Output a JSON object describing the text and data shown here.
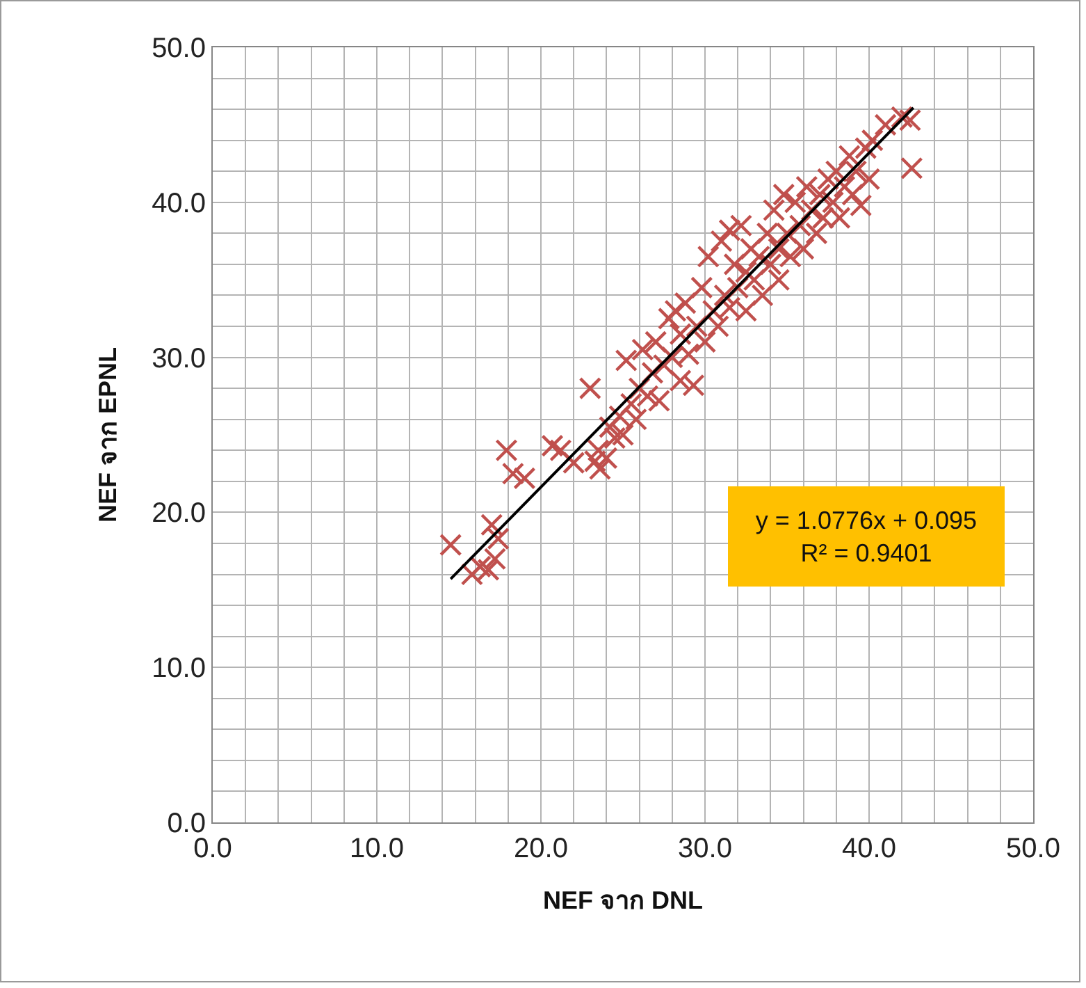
{
  "chart_data": {
    "type": "scatter",
    "xlabel": "NEF จาก DNL",
    "ylabel": "NEF จาก EPNL",
    "annotations": [
      "y = 1.0776x + 0.095",
      "R² = 0.9401"
    ],
    "xlim": [
      0,
      50
    ],
    "ylim": [
      0,
      50
    ],
    "xticks": [
      {
        "value": 0,
        "label": "0.0"
      },
      {
        "value": 2,
        "label": null
      },
      {
        "value": 4,
        "label": null
      },
      {
        "value": 6,
        "label": null
      },
      {
        "value": 8,
        "label": null
      },
      {
        "value": 10,
        "label": "10.0"
      },
      {
        "value": 12,
        "label": null
      },
      {
        "value": 14,
        "label": null
      },
      {
        "value": 16,
        "label": null
      },
      {
        "value": 18,
        "label": null
      },
      {
        "value": 20,
        "label": "20.0"
      },
      {
        "value": 22,
        "label": null
      },
      {
        "value": 24,
        "label": null
      },
      {
        "value": 26,
        "label": null
      },
      {
        "value": 28,
        "label": null
      },
      {
        "value": 30,
        "label": "30.0"
      },
      {
        "value": 32,
        "label": null
      },
      {
        "value": 34,
        "label": null
      },
      {
        "value": 36,
        "label": null
      },
      {
        "value": 38,
        "label": null
      },
      {
        "value": 40,
        "label": "40.0"
      },
      {
        "value": 42,
        "label": null
      },
      {
        "value": 44,
        "label": null
      },
      {
        "value": 46,
        "label": null
      },
      {
        "value": 48,
        "label": null
      },
      {
        "value": 50,
        "label": "50.0"
      }
    ],
    "yticks": [
      {
        "value": 0,
        "label": "0.0"
      },
      {
        "value": 2,
        "label": null
      },
      {
        "value": 4,
        "label": null
      },
      {
        "value": 6,
        "label": null
      },
      {
        "value": 8,
        "label": null
      },
      {
        "value": 10,
        "label": "10.0"
      },
      {
        "value": 12,
        "label": null
      },
      {
        "value": 14,
        "label": null
      },
      {
        "value": 16,
        "label": null
      },
      {
        "value": 18,
        "label": null
      },
      {
        "value": 20,
        "label": "20.0"
      },
      {
        "value": 22,
        "label": null
      },
      {
        "value": 24,
        "label": null
      },
      {
        "value": 26,
        "label": null
      },
      {
        "value": 28,
        "label": null
      },
      {
        "value": 30,
        "label": "30.0"
      },
      {
        "value": 32,
        "label": null
      },
      {
        "value": 34,
        "label": null
      },
      {
        "value": 36,
        "label": null
      },
      {
        "value": 38,
        "label": null
      },
      {
        "value": 40,
        "label": "40.0"
      },
      {
        "value": 42,
        "label": null
      },
      {
        "value": 44,
        "label": null
      },
      {
        "value": 46,
        "label": null
      },
      {
        "value": 48,
        "label": null
      },
      {
        "value": 50,
        "label": "50.0"
      }
    ],
    "grid": true,
    "series": [
      {
        "color": "#c0504d",
        "marker": "cross",
        "x": [
          14.5,
          15.8,
          16.3,
          16.8,
          17.2,
          17.0,
          17.4,
          17.9,
          18.3,
          19.0,
          20.7,
          21.2,
          22.0,
          23.0,
          23.3,
          23.6,
          23.5,
          24.0,
          24.2,
          24.5,
          24.8,
          25.0,
          25.2,
          25.5,
          25.8,
          26.0,
          26.2,
          26.5,
          26.8,
          27.0,
          27.2,
          27.5,
          27.8,
          28.0,
          28.2,
          28.5,
          28.5,
          28.8,
          29.0,
          29.3,
          29.5,
          29.8,
          30.0,
          30.2,
          30.5,
          30.8,
          31.0,
          31.2,
          31.5,
          31.5,
          31.8,
          32.0,
          32.2,
          32.5,
          32.5,
          32.8,
          33.0,
          33.3,
          33.5,
          33.8,
          34.0,
          34.2,
          34.5,
          34.5,
          34.8,
          35.0,
          35.2,
          35.5,
          35.8,
          36.0,
          36.2,
          36.5,
          36.8,
          37.0,
          37.2,
          37.5,
          37.8,
          38.0,
          38.2,
          38.5,
          38.8,
          39.0,
          39.2,
          39.5,
          39.8,
          40.0,
          40.2,
          41.0,
          42.0,
          42.5,
          42.6
        ],
        "values": [
          17.9,
          16.0,
          16.5,
          16.3,
          17.0,
          19.2,
          18.3,
          24.0,
          22.5,
          22.2,
          24.3,
          24.0,
          23.2,
          28.0,
          23.3,
          22.8,
          24.0,
          23.5,
          25.5,
          24.8,
          26.2,
          25.0,
          29.8,
          27.0,
          26.0,
          28.0,
          30.5,
          27.5,
          29.0,
          31.0,
          27.2,
          29.5,
          32.5,
          30.0,
          33.0,
          31.5,
          28.5,
          33.5,
          30.2,
          28.2,
          32.0,
          34.5,
          31.0,
          36.5,
          33.0,
          32.0,
          37.5,
          34.0,
          38.2,
          33.2,
          36.0,
          34.5,
          38.5,
          35.5,
          33.0,
          37.0,
          35.0,
          36.5,
          34.0,
          38.0,
          36.0,
          39.5,
          37.0,
          35.0,
          40.5,
          38.0,
          36.5,
          40.0,
          38.5,
          37.0,
          41.0,
          39.5,
          38.0,
          40.5,
          39.0,
          41.5,
          40.0,
          42.0,
          39.0,
          41.0,
          43.0,
          40.5,
          42.0,
          39.8,
          43.5,
          41.5,
          44.0,
          45.0,
          45.5,
          45.3,
          42.2
        ]
      },
      {
        "type": "line",
        "marker": "none",
        "color": "#000000",
        "x": [
          14.5,
          42.7
        ],
        "values": [
          15.7,
          46.1
        ]
      }
    ]
  }
}
